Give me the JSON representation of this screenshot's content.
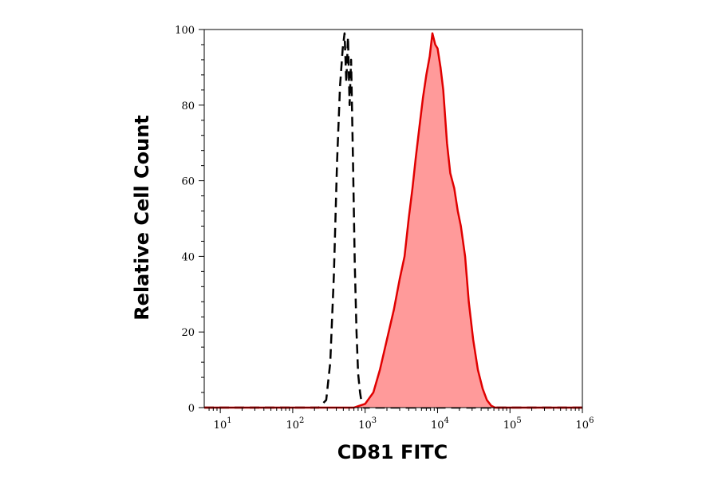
{
  "chart_data": {
    "type": "area",
    "xlabel": "CD81 FITC",
    "ylabel": "Relative Cell Count",
    "x_scale": "log",
    "xlim": [
      6,
      1000000
    ],
    "ylim": [
      0,
      100
    ],
    "grid": false,
    "legend": "none",
    "x_ticks": [
      {
        "base": "10",
        "exp": "1",
        "value": 10
      },
      {
        "base": "10",
        "exp": "2",
        "value": 100
      },
      {
        "base": "10",
        "exp": "3",
        "value": 1000
      },
      {
        "base": "10",
        "exp": "4",
        "value": 10000
      },
      {
        "base": "10",
        "exp": "5",
        "value": 100000
      },
      {
        "base": "10",
        "exp": "6",
        "value": 1000000
      }
    ],
    "y_ticks": [
      {
        "label": "0",
        "value": 0
      },
      {
        "label": "20",
        "value": 20
      },
      {
        "label": "40",
        "value": 40
      },
      {
        "label": "60",
        "value": 60
      },
      {
        "label": "80",
        "value": 80
      },
      {
        "label": "100",
        "value": 100
      }
    ],
    "series": [
      {
        "style": "dashed-outline",
        "color": "#000000",
        "x": [
          6,
          230,
          290,
          330,
          370,
          410,
          450,
          490,
          520,
          550,
          580,
          610,
          640,
          680,
          720,
          760,
          800,
          850,
          900,
          960,
          1000000
        ],
        "y": [
          0,
          0,
          2,
          12,
          35,
          65,
          85,
          95,
          99,
          86,
          98,
          80,
          92,
          65,
          38,
          20,
          9,
          4,
          1,
          0,
          0
        ]
      },
      {
        "style": "filled",
        "color": "#e00000",
        "fill": "#ff9a9a",
        "x": [
          6,
          700,
          1000,
          1300,
          1600,
          2000,
          2500,
          3000,
          3500,
          4000,
          4500,
          5000,
          5600,
          6300,
          7000,
          7800,
          8500,
          9300,
          10000,
          11000,
          12000,
          13500,
          15000,
          17000,
          19000,
          21000,
          24000,
          27000,
          31000,
          36000,
          42000,
          48000,
          55000,
          62000,
          1000000
        ],
        "y": [
          0,
          0,
          1,
          4,
          10,
          18,
          26,
          34,
          40,
          50,
          58,
          66,
          74,
          82,
          88,
          93,
          99,
          96,
          95,
          90,
          84,
          70,
          62,
          58,
          52,
          48,
          40,
          28,
          18,
          10,
          5,
          2,
          0.5,
          0,
          0
        ]
      }
    ]
  }
}
